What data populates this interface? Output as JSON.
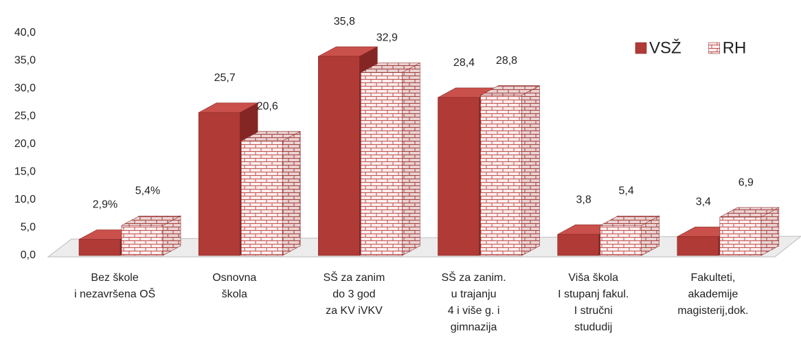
{
  "chart_data": {
    "type": "bar3d",
    "categories": [
      [
        "Bez škole",
        "i nezavršena OŠ"
      ],
      [
        "Osnovna",
        "škola"
      ],
      [
        "SŠ za zanim",
        "do 3 god",
        "za KV iVKV"
      ],
      [
        "SŠ za zanim.",
        "u trajanju",
        "4 i više g. i",
        "gimnazija"
      ],
      [
        "Viša škola",
        "I stupanj fakul.",
        "I stručni",
        "stududij"
      ],
      [
        "Fakulteti,",
        "akademije",
        "magisterij,dok."
      ]
    ],
    "series": [
      {
        "name": "VSŽ",
        "color": "#b03a36",
        "values": [
          2.9,
          25.7,
          35.8,
          28.4,
          3.8,
          3.4
        ],
        "value_labels": [
          "2,9%",
          "25,7",
          "35,8",
          "28,4",
          "3,8",
          "3,4"
        ]
      },
      {
        "name": "RH",
        "color": "#c0504d",
        "pattern": "brick",
        "values": [
          5.4,
          20.6,
          32.9,
          28.8,
          5.4,
          6.9
        ],
        "value_labels": [
          "5,4%",
          "20,6",
          "32,9",
          "28,8",
          "5,4",
          "6,9"
        ]
      }
    ],
    "ylim": [
      0,
      40
    ],
    "yticks": [
      {
        "value": 0,
        "label": "0,0"
      },
      {
        "value": 5,
        "label": "5,0"
      },
      {
        "value": 10,
        "label": "10,0"
      },
      {
        "value": 15,
        "label": "15,0"
      },
      {
        "value": 20,
        "label": "20,0"
      },
      {
        "value": 25,
        "label": "25,0"
      },
      {
        "value": 30,
        "label": "30,0"
      },
      {
        "value": 35,
        "label": "35,0"
      },
      {
        "value": 40,
        "label": "40,0"
      }
    ],
    "legend": "top-right"
  }
}
